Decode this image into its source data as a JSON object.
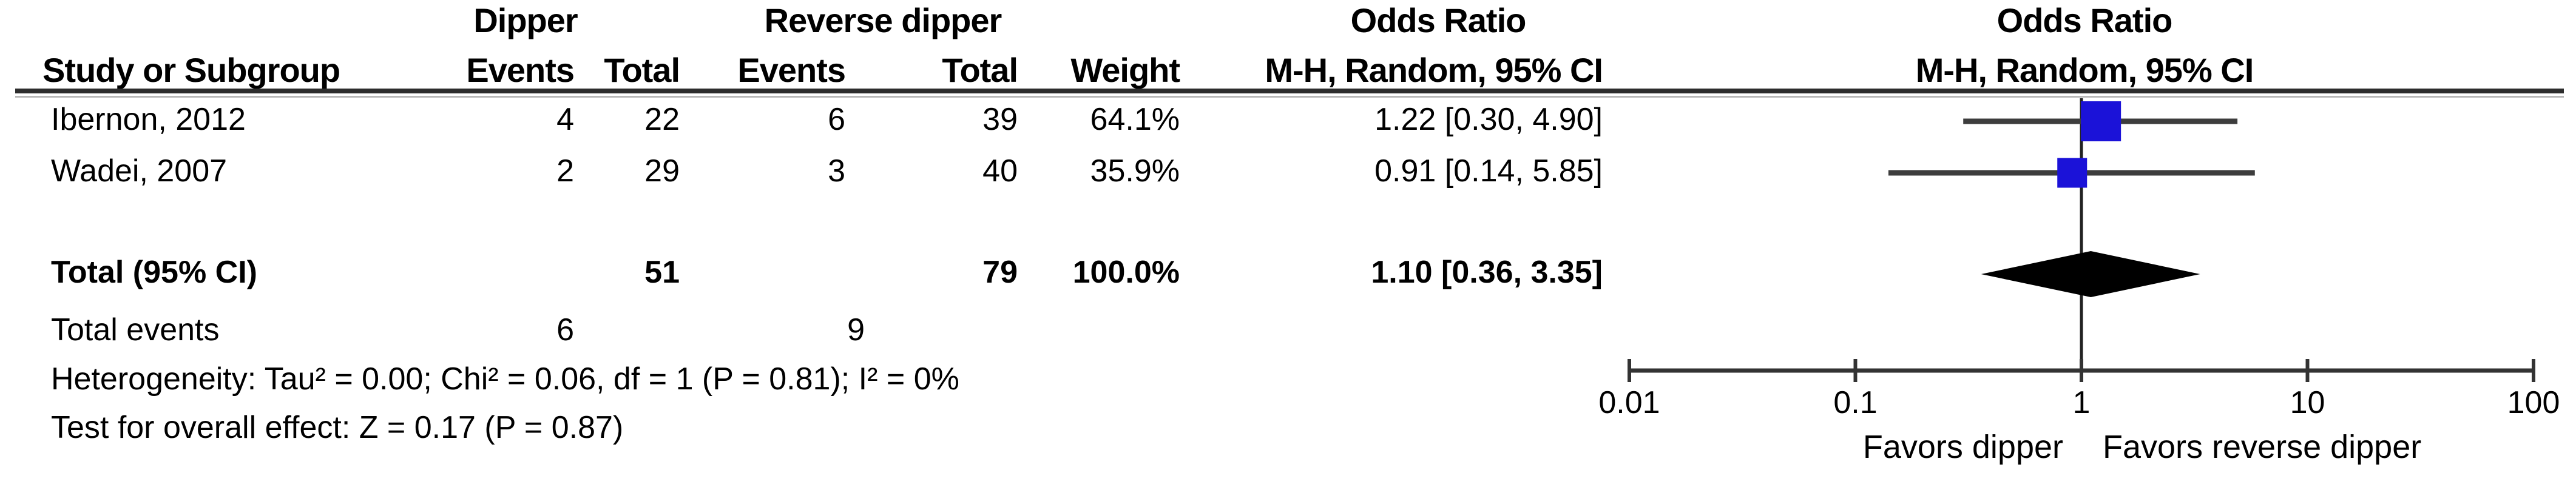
{
  "table": {
    "group_headers": {
      "dipper": "Dipper",
      "reverse": "Reverse dipper",
      "or_left": "Odds Ratio",
      "or_right": "Odds Ratio"
    },
    "col_headers": {
      "study": "Study or Subgroup",
      "dipper_events": "Events",
      "dipper_total": "Total",
      "reverse_events": "Events",
      "reverse_total": "Total",
      "weight": "Weight",
      "mh_left": "M-H, Random, 95% CI",
      "mh_right": "M-H, Random, 95% CI"
    },
    "rows": [
      {
        "study": "Ibernon, 2012",
        "dipper_events": "4",
        "dipper_total": "22",
        "reverse_events": "6",
        "reverse_total": "39",
        "weight": "64.1%",
        "or_ci": "1.22 [0.30, 4.90]"
      },
      {
        "study": "Wadei, 2007",
        "dipper_events": "2",
        "dipper_total": "29",
        "reverse_events": "3",
        "reverse_total": "40",
        "weight": "35.9%",
        "or_ci": "0.91 [0.14, 5.85]"
      }
    ],
    "total_row": {
      "label": "Total (95% CI)",
      "dipper_total": "51",
      "reverse_total": "79",
      "weight": "100.0%",
      "or_ci": "1.10 [0.36, 3.35]"
    },
    "total_events": {
      "label": "Total events",
      "dipper_events": "6",
      "reverse_events": "9"
    },
    "heterogeneity": "Heterogeneity: Tau² = 0.00; Chi² = 0.06, df = 1 (P = 0.81); I² = 0%",
    "overall_effect": "Test for overall effect: Z = 0.17 (P = 0.87)"
  },
  "chart_data": {
    "type": "forest",
    "scale": "log10",
    "effect_measure": "Odds Ratio, M-H, Random, 95% CI",
    "axis": {
      "range": [
        0.01,
        100
      ],
      "ticks": [
        0.01,
        0.1,
        1,
        10,
        100
      ],
      "tick_labels": [
        "0.01",
        "0.1",
        "1",
        "10",
        "100"
      ],
      "null_line": 1
    },
    "studies": [
      {
        "name": "Ibernon, 2012",
        "or": 1.22,
        "ci_low": 0.3,
        "ci_high": 4.9,
        "weight_pct": 64.1
      },
      {
        "name": "Wadei, 2007",
        "or": 0.91,
        "ci_low": 0.14,
        "ci_high": 5.85,
        "weight_pct": 35.9
      }
    ],
    "total": {
      "or": 1.1,
      "ci_low": 0.36,
      "ci_high": 3.35,
      "weight_pct": 100.0
    },
    "footer_labels": {
      "left": "Favors dipper",
      "right": "Favors reverse dipper"
    },
    "colors": {
      "marker": "#1b12d8",
      "ci_line": "#3d3d3d",
      "diamond": "#000000",
      "axis": "#333333"
    }
  }
}
